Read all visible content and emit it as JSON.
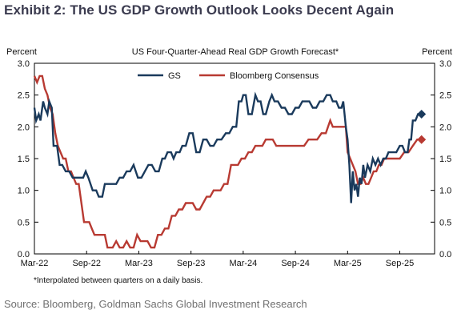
{
  "header": {
    "title": "Exhibit 2: The US GDP Growth Outlook Looks Decent Again"
  },
  "footer": {
    "footnote": "*Interpolated between quarters on a daily basis.",
    "source": "Source: Bloomberg, Goldman Sachs Global Investment Research"
  },
  "chart_data": {
    "type": "line",
    "title": "US Four-Quarter-Ahead Real GDP Growth Forecast*",
    "ylabel_left": "Percent",
    "ylabel_right": "Percent",
    "xlim": [
      0,
      46
    ],
    "ylim": [
      0,
      3.0
    ],
    "y_ticks": [
      "0.0",
      "0.5",
      "1.0",
      "1.5",
      "2.0",
      "2.5",
      "3.0"
    ],
    "x_ticks": [
      {
        "label": "Mar-22",
        "x": 0
      },
      {
        "label": "Sep-22",
        "x": 6
      },
      {
        "label": "Mar-23",
        "x": 12
      },
      {
        "label": "Sep-23",
        "x": 18
      },
      {
        "label": "Mar-24",
        "x": 24
      },
      {
        "label": "Sep-24",
        "x": 30
      },
      {
        "label": "Mar-25",
        "x": 36
      },
      {
        "label": "Sep-25",
        "x": 42
      }
    ],
    "legend_position": "top-center",
    "grid": false,
    "series": [
      {
        "name": "GS",
        "color": "#1a3a5c",
        "points": [
          [
            0.0,
            2.3
          ],
          [
            0.2,
            2.1
          ],
          [
            0.5,
            2.2
          ],
          [
            0.7,
            2.1
          ],
          [
            1.0,
            2.4
          ],
          [
            1.2,
            2.3
          ],
          [
            1.5,
            2.2
          ],
          [
            1.7,
            2.4
          ],
          [
            2.0,
            2.3
          ],
          [
            2.2,
            1.7
          ],
          [
            2.6,
            1.7
          ],
          [
            2.9,
            1.4
          ],
          [
            3.2,
            1.4
          ],
          [
            3.6,
            1.3
          ],
          [
            4.0,
            1.3
          ],
          [
            4.4,
            1.2
          ],
          [
            5.0,
            1.2
          ],
          [
            5.6,
            1.2
          ],
          [
            5.9,
            1.3
          ],
          [
            6.2,
            1.2
          ],
          [
            6.7,
            1.0
          ],
          [
            7.1,
            1.0
          ],
          [
            7.4,
            0.9
          ],
          [
            7.8,
            0.9
          ],
          [
            8.1,
            1.1
          ],
          [
            8.5,
            1.1
          ],
          [
            9.0,
            1.1
          ],
          [
            9.4,
            1.1
          ],
          [
            9.8,
            1.2
          ],
          [
            10.2,
            1.2
          ],
          [
            10.6,
            1.3
          ],
          [
            11.0,
            1.3
          ],
          [
            11.4,
            1.4
          ],
          [
            11.9,
            1.2
          ],
          [
            12.3,
            1.2
          ],
          [
            12.7,
            1.3
          ],
          [
            13.1,
            1.4
          ],
          [
            13.5,
            1.4
          ],
          [
            13.9,
            1.3
          ],
          [
            14.3,
            1.3
          ],
          [
            14.7,
            1.5
          ],
          [
            15.0,
            1.5
          ],
          [
            15.3,
            1.6
          ],
          [
            15.7,
            1.6
          ],
          [
            16.0,
            1.5
          ],
          [
            16.3,
            1.6
          ],
          [
            16.7,
            1.6
          ],
          [
            17.0,
            1.7
          ],
          [
            17.4,
            1.7
          ],
          [
            17.8,
            1.9
          ],
          [
            18.2,
            1.9
          ],
          [
            18.6,
            1.6
          ],
          [
            19.0,
            1.6
          ],
          [
            19.4,
            1.8
          ],
          [
            19.8,
            1.8
          ],
          [
            20.2,
            1.7
          ],
          [
            20.6,
            1.7
          ],
          [
            21.0,
            1.8
          ],
          [
            21.5,
            1.8
          ],
          [
            22.0,
            1.9
          ],
          [
            22.4,
            1.9
          ],
          [
            22.8,
            2.0
          ],
          [
            23.2,
            2.0
          ],
          [
            23.5,
            2.4
          ],
          [
            23.8,
            2.4
          ],
          [
            24.0,
            2.5
          ],
          [
            24.3,
            2.5
          ],
          [
            24.6,
            2.2
          ],
          [
            25.0,
            2.2
          ],
          [
            25.4,
            2.5
          ],
          [
            25.7,
            2.4
          ],
          [
            26.0,
            2.4
          ],
          [
            26.3,
            2.2
          ],
          [
            26.6,
            2.2
          ],
          [
            27.0,
            2.4
          ],
          [
            27.3,
            2.5
          ],
          [
            27.6,
            2.4
          ],
          [
            28.0,
            2.4
          ],
          [
            28.4,
            2.3
          ],
          [
            28.8,
            2.3
          ],
          [
            29.2,
            2.2
          ],
          [
            29.6,
            2.2
          ],
          [
            30.0,
            2.3
          ],
          [
            30.4,
            2.3
          ],
          [
            30.8,
            2.4
          ],
          [
            31.2,
            2.4
          ],
          [
            31.6,
            2.4
          ],
          [
            32.0,
            2.3
          ],
          [
            32.4,
            2.3
          ],
          [
            32.8,
            2.4
          ],
          [
            33.2,
            2.4
          ],
          [
            33.6,
            2.5
          ],
          [
            34.0,
            2.5
          ],
          [
            34.3,
            2.4
          ],
          [
            34.7,
            2.4
          ],
          [
            35.0,
            2.3
          ],
          [
            35.3,
            2.3
          ],
          [
            35.5,
            2.4
          ],
          [
            35.8,
            2.0
          ],
          [
            36.0,
            1.8
          ],
          [
            36.2,
            1.4
          ],
          [
            36.4,
            0.8
          ],
          [
            36.6,
            1.3
          ],
          [
            36.8,
            1.0
          ],
          [
            37.0,
            1.1
          ],
          [
            37.2,
            0.9
          ],
          [
            37.4,
            1.2
          ],
          [
            37.6,
            1.1
          ],
          [
            37.8,
            1.4
          ],
          [
            38.0,
            1.2
          ],
          [
            38.3,
            1.4
          ],
          [
            38.6,
            1.3
          ],
          [
            38.9,
            1.5
          ],
          [
            39.2,
            1.4
          ],
          [
            39.5,
            1.5
          ],
          [
            39.8,
            1.4
          ],
          [
            40.1,
            1.5
          ],
          [
            40.4,
            1.5
          ],
          [
            40.7,
            1.6
          ],
          [
            41.0,
            1.6
          ],
          [
            41.3,
            1.6
          ],
          [
            41.6,
            1.6
          ],
          [
            42.0,
            1.7
          ],
          [
            42.3,
            1.7
          ],
          [
            42.6,
            1.6
          ],
          [
            42.9,
            1.6
          ],
          [
            43.1,
            1.8
          ],
          [
            43.3,
            1.8
          ],
          [
            43.5,
            2.1
          ],
          [
            43.8,
            2.1
          ],
          [
            44.1,
            2.2
          ],
          [
            44.3,
            2.2
          ]
        ],
        "end_marker": {
          "x": 44.5,
          "y": 2.2
        }
      },
      {
        "name": "Bloomberg Consensus",
        "color": "#b83a32",
        "points": [
          [
            0.0,
            2.8
          ],
          [
            0.3,
            2.7
          ],
          [
            0.6,
            2.8
          ],
          [
            0.9,
            2.8
          ],
          [
            1.2,
            2.6
          ],
          [
            1.5,
            2.5
          ],
          [
            1.8,
            2.3
          ],
          [
            2.1,
            2.2
          ],
          [
            2.4,
            1.9
          ],
          [
            2.7,
            1.7
          ],
          [
            3.0,
            1.6
          ],
          [
            3.3,
            1.5
          ],
          [
            3.6,
            1.5
          ],
          [
            3.9,
            1.3
          ],
          [
            4.2,
            1.3
          ],
          [
            4.5,
            1.2
          ],
          [
            4.8,
            1.1
          ],
          [
            5.1,
            1.1
          ],
          [
            5.4,
            0.8
          ],
          [
            5.7,
            0.5
          ],
          [
            6.0,
            0.5
          ],
          [
            6.3,
            0.5
          ],
          [
            6.6,
            0.4
          ],
          [
            6.9,
            0.3
          ],
          [
            7.2,
            0.3
          ],
          [
            7.5,
            0.3
          ],
          [
            7.8,
            0.3
          ],
          [
            8.1,
            0.3
          ],
          [
            8.4,
            0.1
          ],
          [
            8.7,
            0.1
          ],
          [
            9.0,
            0.1
          ],
          [
            9.4,
            0.2
          ],
          [
            9.8,
            0.1
          ],
          [
            10.2,
            0.1
          ],
          [
            10.6,
            0.2
          ],
          [
            11.0,
            0.1
          ],
          [
            11.4,
            0.1
          ],
          [
            11.8,
            0.3
          ],
          [
            12.2,
            0.2
          ],
          [
            12.6,
            0.2
          ],
          [
            13.0,
            0.2
          ],
          [
            13.4,
            0.1
          ],
          [
            13.8,
            0.1
          ],
          [
            14.2,
            0.3
          ],
          [
            14.6,
            0.3
          ],
          [
            15.0,
            0.4
          ],
          [
            15.4,
            0.4
          ],
          [
            15.8,
            0.6
          ],
          [
            16.2,
            0.6
          ],
          [
            16.6,
            0.7
          ],
          [
            17.0,
            0.7
          ],
          [
            17.4,
            0.8
          ],
          [
            17.8,
            0.8
          ],
          [
            18.2,
            0.8
          ],
          [
            18.6,
            0.7
          ],
          [
            19.0,
            0.7
          ],
          [
            19.4,
            0.8
          ],
          [
            19.8,
            0.9
          ],
          [
            20.2,
            0.9
          ],
          [
            20.6,
            1.0
          ],
          [
            21.0,
            1.0
          ],
          [
            21.4,
            1.0
          ],
          [
            21.8,
            1.1
          ],
          [
            22.2,
            1.1
          ],
          [
            22.6,
            1.4
          ],
          [
            23.0,
            1.4
          ],
          [
            23.4,
            1.4
          ],
          [
            23.8,
            1.5
          ],
          [
            24.2,
            1.5
          ],
          [
            24.6,
            1.6
          ],
          [
            25.0,
            1.6
          ],
          [
            25.4,
            1.7
          ],
          [
            25.8,
            1.7
          ],
          [
            26.2,
            1.7
          ],
          [
            26.6,
            1.8
          ],
          [
            27.0,
            1.8
          ],
          [
            27.4,
            1.8
          ],
          [
            27.8,
            1.7
          ],
          [
            28.2,
            1.7
          ],
          [
            28.6,
            1.7
          ],
          [
            29.0,
            1.7
          ],
          [
            29.5,
            1.7
          ],
          [
            30.0,
            1.7
          ],
          [
            30.5,
            1.7
          ],
          [
            31.0,
            1.7
          ],
          [
            31.5,
            1.8
          ],
          [
            32.0,
            1.8
          ],
          [
            32.5,
            1.8
          ],
          [
            33.0,
            1.9
          ],
          [
            33.5,
            1.9
          ],
          [
            34.0,
            2.1
          ],
          [
            34.3,
            2.0
          ],
          [
            34.7,
            2.0
          ],
          [
            35.0,
            2.0
          ],
          [
            35.4,
            2.0
          ],
          [
            35.8,
            2.0
          ],
          [
            36.0,
            1.6
          ],
          [
            36.3,
            1.5
          ],
          [
            36.6,
            1.4
          ],
          [
            36.9,
            1.3
          ],
          [
            37.2,
            1.1
          ],
          [
            37.5,
            1.1
          ],
          [
            37.8,
            1.2
          ],
          [
            38.1,
            1.1
          ],
          [
            38.4,
            1.1
          ],
          [
            38.7,
            1.2
          ],
          [
            39.0,
            1.3
          ],
          [
            39.3,
            1.3
          ],
          [
            39.6,
            1.4
          ],
          [
            39.9,
            1.4
          ],
          [
            40.2,
            1.5
          ],
          [
            40.5,
            1.5
          ],
          [
            41.0,
            1.5
          ],
          [
            41.5,
            1.5
          ],
          [
            42.0,
            1.5
          ],
          [
            42.5,
            1.6
          ],
          [
            43.0,
            1.6
          ],
          [
            43.5,
            1.7
          ],
          [
            44.0,
            1.8
          ],
          [
            44.3,
            1.8
          ]
        ],
        "end_marker": {
          "x": 44.5,
          "y": 1.8
        }
      }
    ]
  }
}
